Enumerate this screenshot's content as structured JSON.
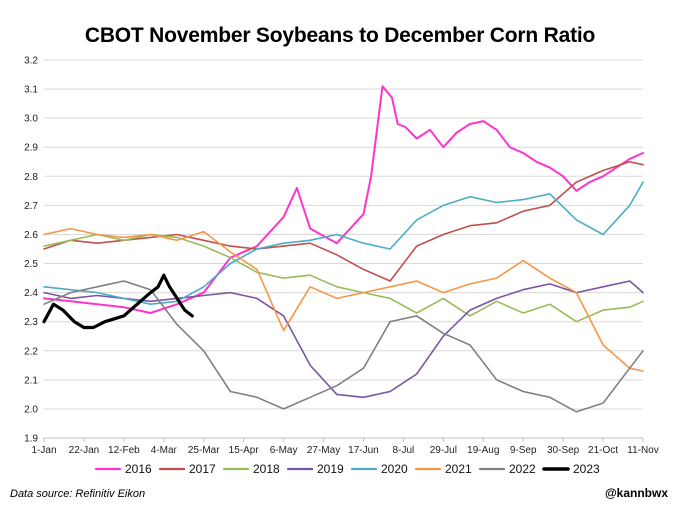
{
  "chart_data": {
    "type": "line",
    "title": "CBOT November Soybeans to December Corn Ratio",
    "xlabel": "",
    "ylabel": "",
    "ylim": [
      1.9,
      3.2
    ],
    "yticks": [
      "1.9",
      "2.0",
      "2.1",
      "2.2",
      "2.3",
      "2.4",
      "2.5",
      "2.6",
      "2.7",
      "2.8",
      "2.9",
      "3.0",
      "3.1",
      "3.2"
    ],
    "xlim": [
      0,
      315
    ],
    "xticks": [
      {
        "label": "1-Jan",
        "day": 0
      },
      {
        "label": "22-Jan",
        "day": 21
      },
      {
        "label": "12-Feb",
        "day": 42
      },
      {
        "label": "4-Mar",
        "day": 63
      },
      {
        "label": "25-Mar",
        "day": 84
      },
      {
        "label": "15-Apr",
        "day": 105
      },
      {
        "label": "6-May",
        "day": 126
      },
      {
        "label": "27-May",
        "day": 147
      },
      {
        "label": "17-Jun",
        "day": 168
      },
      {
        "label": "8-Jul",
        "day": 189
      },
      {
        "label": "29-Jul",
        "day": 210
      },
      {
        "label": "19-Aug",
        "day": 231
      },
      {
        "label": "9-Sep",
        "day": 252
      },
      {
        "label": "30-Sep",
        "day": 273
      },
      {
        "label": "21-Oct",
        "day": 294
      },
      {
        "label": "11-Nov",
        "day": 315
      }
    ],
    "grid": true,
    "legend_position": "bottom",
    "series": [
      {
        "name": "2016",
        "color": "#ff33cc",
        "width": 2,
        "x": [
          0,
          14,
          28,
          42,
          56,
          70,
          84,
          98,
          112,
          126,
          133,
          140,
          154,
          168,
          172,
          178,
          183,
          186,
          190,
          196,
          203,
          210,
          217,
          224,
          231,
          238,
          245,
          252,
          259,
          266,
          273,
          280,
          287,
          294,
          301,
          308,
          315
        ],
        "y": [
          2.38,
          2.37,
          2.36,
          2.35,
          2.33,
          2.36,
          2.4,
          2.52,
          2.56,
          2.66,
          2.76,
          2.62,
          2.57,
          2.67,
          2.8,
          3.11,
          3.07,
          2.98,
          2.97,
          2.93,
          2.96,
          2.9,
          2.95,
          2.98,
          2.99,
          2.96,
          2.9,
          2.88,
          2.85,
          2.83,
          2.8,
          2.75,
          2.78,
          2.8,
          2.83,
          2.86,
          2.88
        ]
      },
      {
        "name": "2017",
        "color": "#c0504d",
        "width": 1.6,
        "x": [
          0,
          14,
          28,
          42,
          56,
          70,
          84,
          98,
          112,
          126,
          140,
          154,
          168,
          182,
          196,
          210,
          224,
          238,
          252,
          266,
          280,
          294,
          308,
          315
        ],
        "y": [
          2.55,
          2.58,
          2.57,
          2.58,
          2.59,
          2.6,
          2.58,
          2.56,
          2.55,
          2.56,
          2.57,
          2.53,
          2.48,
          2.44,
          2.56,
          2.6,
          2.63,
          2.64,
          2.68,
          2.7,
          2.78,
          2.82,
          2.85,
          2.84
        ]
      },
      {
        "name": "2018",
        "color": "#9bbb59",
        "width": 1.6,
        "x": [
          0,
          14,
          28,
          42,
          56,
          70,
          84,
          98,
          112,
          126,
          140,
          154,
          168,
          182,
          196,
          210,
          224,
          238,
          252,
          266,
          280,
          294,
          308,
          315
        ],
        "y": [
          2.56,
          2.58,
          2.6,
          2.58,
          2.6,
          2.59,
          2.56,
          2.52,
          2.47,
          2.45,
          2.46,
          2.42,
          2.4,
          2.38,
          2.33,
          2.38,
          2.32,
          2.37,
          2.33,
          2.36,
          2.3,
          2.34,
          2.35,
          2.37
        ]
      },
      {
        "name": "2019",
        "color": "#7a55a6",
        "width": 1.6,
        "x": [
          0,
          14,
          28,
          42,
          56,
          70,
          84,
          98,
          112,
          126,
          140,
          154,
          168,
          182,
          196,
          210,
          224,
          238,
          252,
          266,
          280,
          294,
          308,
          315
        ],
        "y": [
          2.4,
          2.38,
          2.39,
          2.38,
          2.37,
          2.38,
          2.39,
          2.4,
          2.38,
          2.32,
          2.15,
          2.05,
          2.04,
          2.06,
          2.12,
          2.25,
          2.34,
          2.38,
          2.41,
          2.43,
          2.4,
          2.42,
          2.44,
          2.4
        ]
      },
      {
        "name": "2020",
        "color": "#4bacc6",
        "width": 1.6,
        "x": [
          0,
          14,
          28,
          42,
          56,
          70,
          84,
          98,
          112,
          126,
          140,
          154,
          168,
          182,
          196,
          210,
          224,
          238,
          252,
          266,
          280,
          294,
          308,
          315
        ],
        "y": [
          2.42,
          2.41,
          2.4,
          2.38,
          2.36,
          2.37,
          2.42,
          2.5,
          2.55,
          2.57,
          2.58,
          2.6,
          2.57,
          2.55,
          2.65,
          2.7,
          2.73,
          2.71,
          2.72,
          2.74,
          2.65,
          2.6,
          2.7,
          2.78
        ]
      },
      {
        "name": "2021",
        "color": "#f79646",
        "width": 1.6,
        "x": [
          0,
          14,
          28,
          42,
          56,
          70,
          84,
          98,
          112,
          126,
          140,
          154,
          168,
          182,
          196,
          210,
          224,
          238,
          252,
          266,
          280,
          294,
          308,
          315
        ],
        "y": [
          2.6,
          2.62,
          2.6,
          2.59,
          2.6,
          2.58,
          2.61,
          2.54,
          2.48,
          2.27,
          2.42,
          2.38,
          2.4,
          2.42,
          2.44,
          2.4,
          2.43,
          2.45,
          2.51,
          2.45,
          2.4,
          2.22,
          2.14,
          2.13
        ]
      },
      {
        "name": "2022",
        "color": "#808080",
        "width": 1.6,
        "x": [
          0,
          14,
          28,
          42,
          56,
          70,
          84,
          98,
          112,
          126,
          140,
          154,
          168,
          182,
          196,
          210,
          224,
          238,
          252,
          266,
          280,
          294,
          308,
          315
        ],
        "y": [
          2.36,
          2.4,
          2.42,
          2.44,
          2.41,
          2.29,
          2.2,
          2.06,
          2.04,
          2.0,
          2.04,
          2.08,
          2.14,
          2.3,
          2.32,
          2.26,
          2.22,
          2.1,
          2.06,
          2.04,
          1.99,
          2.02,
          2.14,
          2.2
        ]
      },
      {
        "name": "2023",
        "color": "#000000",
        "width": 3.2,
        "x": [
          0,
          5,
          10,
          16,
          21,
          26,
          32,
          37,
          42,
          49,
          56,
          60,
          63,
          66,
          70,
          74,
          78
        ],
        "y": [
          2.3,
          2.36,
          2.34,
          2.3,
          2.28,
          2.28,
          2.3,
          2.31,
          2.32,
          2.36,
          2.4,
          2.42,
          2.46,
          2.42,
          2.38,
          2.34,
          2.32
        ]
      }
    ]
  },
  "footer": {
    "source": "Data source: Refinitiv Eikon",
    "handle": "@kannbwx"
  }
}
